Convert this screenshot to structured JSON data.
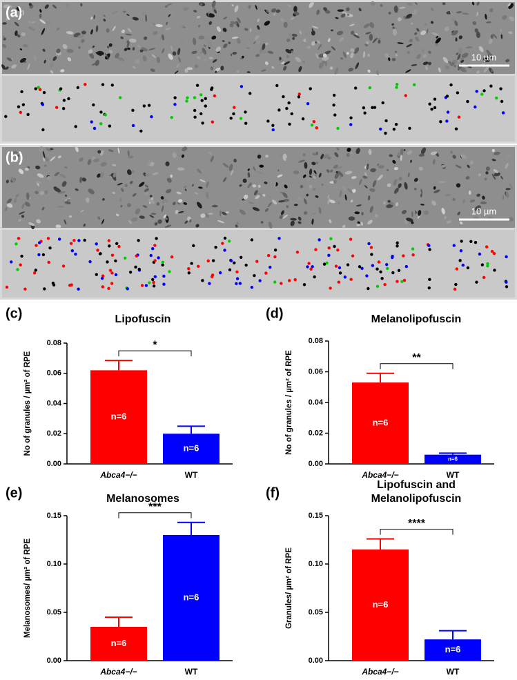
{
  "micrographs": [
    {
      "label": "(a)",
      "scale_bar": "10 µm"
    },
    {
      "label": "(b)",
      "scale_bar": "10 µm"
    }
  ],
  "chart_data": [
    {
      "type": "bar",
      "panel": "(c)",
      "title": [
        "Lipofuscin"
      ],
      "y_label": "No of granules / µm² of RPE",
      "categories": [
        "Abca4−/−",
        "WT"
      ],
      "values": [
        0.062,
        0.02
      ],
      "errors": [
        0.0065,
        0.005
      ],
      "colors": [
        "#ff0000",
        "#0000ff"
      ],
      "n_labels": [
        "n=6",
        "n=6"
      ],
      "significance": "*",
      "ylim": [
        0,
        0.08
      ],
      "yticks": [
        {
          "value": 0,
          "label": "0.00"
        },
        {
          "value": 0.02,
          "label": "0.02"
        },
        {
          "value": 0.04,
          "label": "0.04"
        },
        {
          "value": 0.06,
          "label": "0.06"
        },
        {
          "value": 0.08,
          "label": "0.08"
        }
      ]
    },
    {
      "type": "bar",
      "panel": "(d)",
      "title": [
        "Melanolipofuscin"
      ],
      "y_label": "No of granules / µm² of RPE",
      "categories": [
        "Abca4−/−",
        "WT"
      ],
      "values": [
        0.053,
        0.006
      ],
      "errors": [
        0.006,
        0.001
      ],
      "colors": [
        "#ff0000",
        "#0000ff"
      ],
      "n_labels": [
        "n=6",
        "n=6"
      ],
      "significance": "**",
      "ylim": [
        0,
        0.08
      ],
      "yticks": [
        {
          "value": 0,
          "label": "0.00"
        },
        {
          "value": 0.02,
          "label": "0.02"
        },
        {
          "value": 0.04,
          "label": "0.04"
        },
        {
          "value": 0.06,
          "label": "0.06"
        },
        {
          "value": 0.08,
          "label": "0.08"
        }
      ]
    },
    {
      "type": "bar",
      "panel": "(e)",
      "title": [
        "Melanosomes"
      ],
      "y_label": "Melanosomes/ µm² of RPE",
      "categories": [
        "Abca4−/−",
        "WT"
      ],
      "values": [
        0.035,
        0.13
      ],
      "errors": [
        0.01,
        0.013
      ],
      "colors": [
        "#ff0000",
        "#0000ff"
      ],
      "n_labels": [
        "n=6",
        "n=6"
      ],
      "significance": "***",
      "ylim": [
        0,
        0.15
      ],
      "yticks": [
        {
          "value": 0,
          "label": "0.00"
        },
        {
          "value": 0.05,
          "label": "0.05"
        },
        {
          "value": 0.1,
          "label": "0.10"
        },
        {
          "value": 0.15,
          "label": "0.15"
        }
      ]
    },
    {
      "type": "bar",
      "panel": "(f)",
      "title": [
        "Lipofuscin and",
        "Melanolipofuscin"
      ],
      "y_label": "Granules/ µm² of RPE",
      "categories": [
        "Abca4−/−",
        "WT"
      ],
      "values": [
        0.115,
        0.022
      ],
      "errors": [
        0.011,
        0.009
      ],
      "colors": [
        "#ff0000",
        "#0000ff"
      ],
      "n_labels": [
        "n=6",
        "n=6"
      ],
      "significance": "****",
      "ylim": [
        0,
        0.15
      ],
      "yticks": [
        {
          "value": 0,
          "label": "0.00"
        },
        {
          "value": 0.05,
          "label": "0.05"
        },
        {
          "value": 0.1,
          "label": "0.10"
        },
        {
          "value": 0.15,
          "label": "0.15"
        }
      ]
    }
  ]
}
